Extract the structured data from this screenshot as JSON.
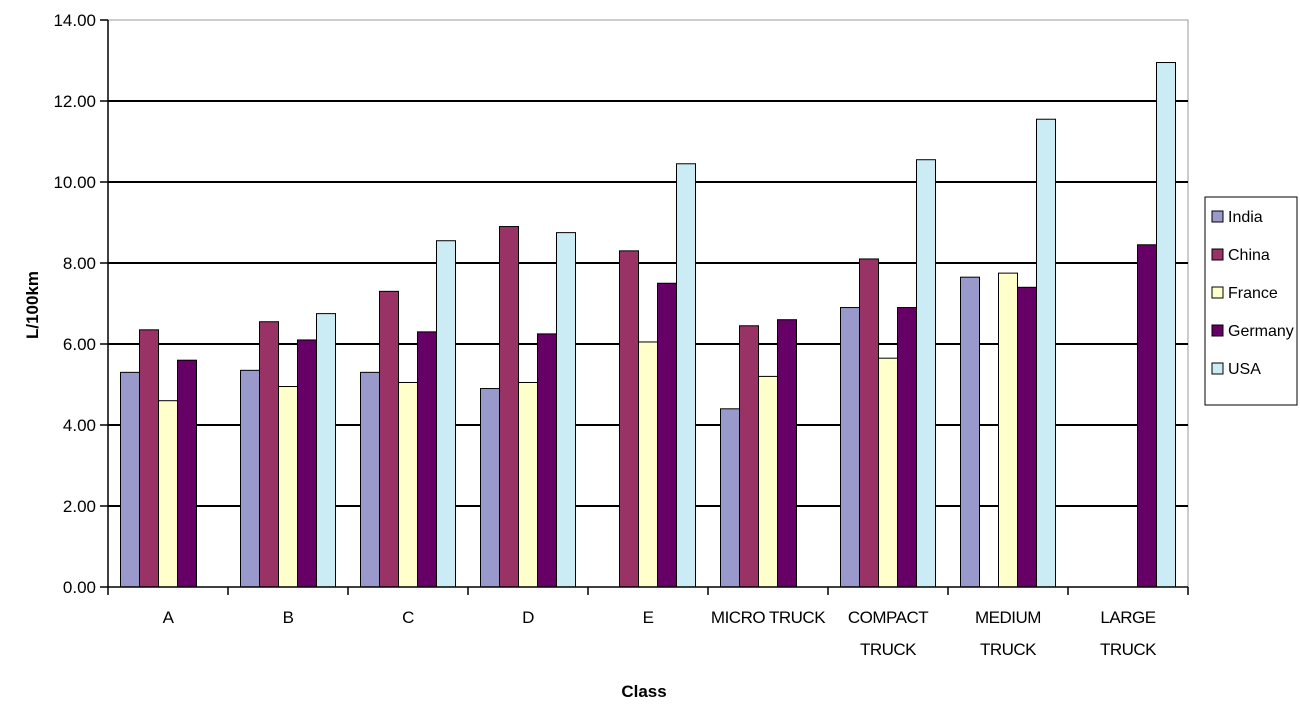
{
  "chart_data": {
    "type": "bar",
    "xlabel": "Class",
    "ylabel": "L/100km",
    "ylim": [
      0,
      14
    ],
    "ytick_step": 2,
    "ytick_labels": [
      "0.00",
      "2.00",
      "4.00",
      "6.00",
      "8.00",
      "10.00",
      "12.00",
      "14.00"
    ],
    "grid": true,
    "legend_position": "right",
    "categories": [
      [
        "A"
      ],
      [
        "B"
      ],
      [
        "C"
      ],
      [
        "D"
      ],
      [
        "E"
      ],
      [
        "MICRO TRUCK"
      ],
      [
        "COMPACT",
        "TRUCK"
      ],
      [
        "MEDIUM",
        "TRUCK"
      ],
      [
        "LARGE",
        "TRUCK"
      ]
    ],
    "series": [
      {
        "name": "India",
        "color": "#9999cc",
        "values": [
          5.3,
          5.35,
          5.3,
          4.9,
          null,
          4.4,
          6.9,
          7.65,
          null
        ]
      },
      {
        "name": "China",
        "color": "#993366",
        "values": [
          6.35,
          6.55,
          7.3,
          8.9,
          8.3,
          6.45,
          8.1,
          null,
          null
        ]
      },
      {
        "name": "France",
        "color": "#ffffcc",
        "values": [
          4.6,
          4.95,
          5.05,
          5.05,
          6.05,
          5.2,
          5.65,
          7.75,
          null
        ]
      },
      {
        "name": "Germany",
        "color": "#660066",
        "values": [
          5.6,
          6.1,
          6.3,
          6.25,
          7.5,
          6.6,
          6.9,
          7.4,
          8.45
        ]
      },
      {
        "name": "USA",
        "color": "#ccecf5",
        "values": [
          null,
          6.75,
          8.55,
          8.75,
          10.45,
          null,
          10.55,
          11.55,
          12.95
        ]
      }
    ]
  }
}
